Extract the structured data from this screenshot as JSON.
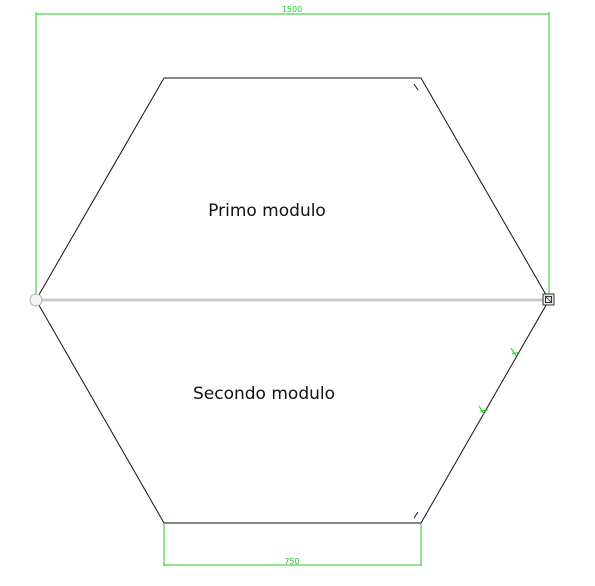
{
  "drawing": {
    "top_dimension": "1500",
    "bottom_dimension": "750",
    "top_module_label": "Primo modulo",
    "bottom_module_label": "Secondo modulo"
  },
  "colors": {
    "background": "#ffffff",
    "outline": "#111111",
    "dimension": "#22cc22",
    "divider": "#c8c8c8"
  },
  "icons": {
    "start_handle": "circle-handle-icon",
    "end_handle": "square-snap-handle-icon"
  }
}
